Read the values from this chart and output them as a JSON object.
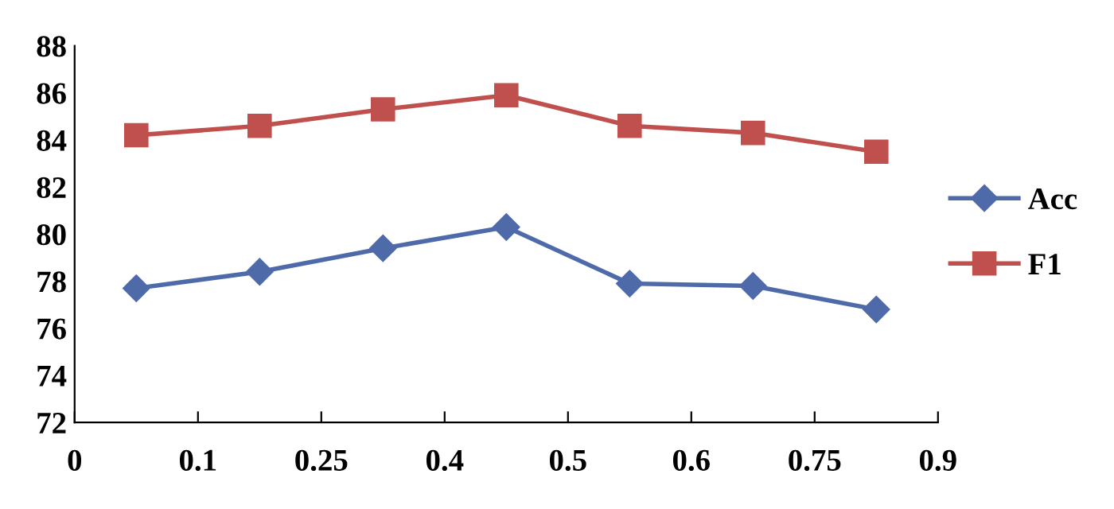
{
  "chart_data": {
    "type": "line",
    "categories": [
      "0",
      null,
      "0.1",
      null,
      "0.25",
      null,
      "0.4",
      null,
      "0.5",
      null,
      "0.6",
      null,
      "0.75",
      null,
      "0.9"
    ],
    "series": [
      {
        "name": "Acc",
        "color": "#4f6aa8",
        "marker": "diamond",
        "values": [
          null,
          77.7,
          null,
          78.4,
          null,
          79.4,
          null,
          80.3,
          null,
          77.9,
          null,
          77.8,
          null,
          76.8,
          null
        ]
      },
      {
        "name": "F1",
        "color": "#c0504d",
        "marker": "square",
        "values": [
          null,
          84.2,
          null,
          84.6,
          null,
          85.3,
          null,
          85.9,
          null,
          84.6,
          null,
          84.3,
          null,
          83.5,
          null
        ]
      }
    ],
    "ylim": [
      72,
      88
    ],
    "yticks": [
      72,
      74,
      76,
      78,
      80,
      82,
      84,
      86,
      88
    ],
    "grid": false,
    "legend": "right",
    "line_style": "solid"
  }
}
